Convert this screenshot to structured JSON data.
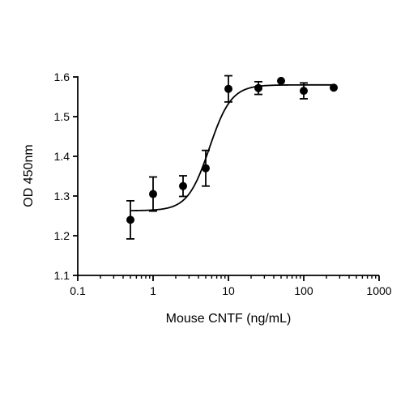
{
  "chart_data": {
    "type": "scatter",
    "xlabel": "Mouse CNTF (ng/mL)",
    "ylabel": "OD 450nm",
    "x_scale": "log",
    "xlim": [
      0.1,
      1000
    ],
    "ylim": [
      1.1,
      1.6
    ],
    "x_ticks": [
      0.1,
      1,
      10,
      100,
      1000
    ],
    "x_tick_labels": [
      "0.1",
      "1",
      "10",
      "100",
      "1000"
    ],
    "y_ticks": [
      1.1,
      1.2,
      1.3,
      1.4,
      1.5,
      1.6
    ],
    "y_tick_labels": [
      "1.1",
      "1.2",
      "1.3",
      "1.4",
      "1.5",
      "1.6"
    ],
    "grid": false,
    "legend": "none",
    "colors": {
      "marker": "#000000",
      "line": "#000000"
    },
    "points": [
      {
        "x": 0.5,
        "y": 1.24,
        "err": 0.048
      },
      {
        "x": 1,
        "y": 1.305,
        "err": 0.043
      },
      {
        "x": 2.5,
        "y": 1.325,
        "err": 0.026
      },
      {
        "x": 5,
        "y": 1.37,
        "err": 0.045
      },
      {
        "x": 10,
        "y": 1.57,
        "err": 0.033
      },
      {
        "x": 25,
        "y": 1.572,
        "err": 0.016
      },
      {
        "x": 50,
        "y": 1.59,
        "err": 0
      },
      {
        "x": 100,
        "y": 1.565,
        "err": 0.02
      },
      {
        "x": 250,
        "y": 1.573,
        "err": 0
      }
    ],
    "fit_curve": {
      "type": "four-parameter logistic",
      "bottom": 1.263,
      "top": 1.58,
      "ec50": 5.6,
      "hill": 3
    }
  }
}
